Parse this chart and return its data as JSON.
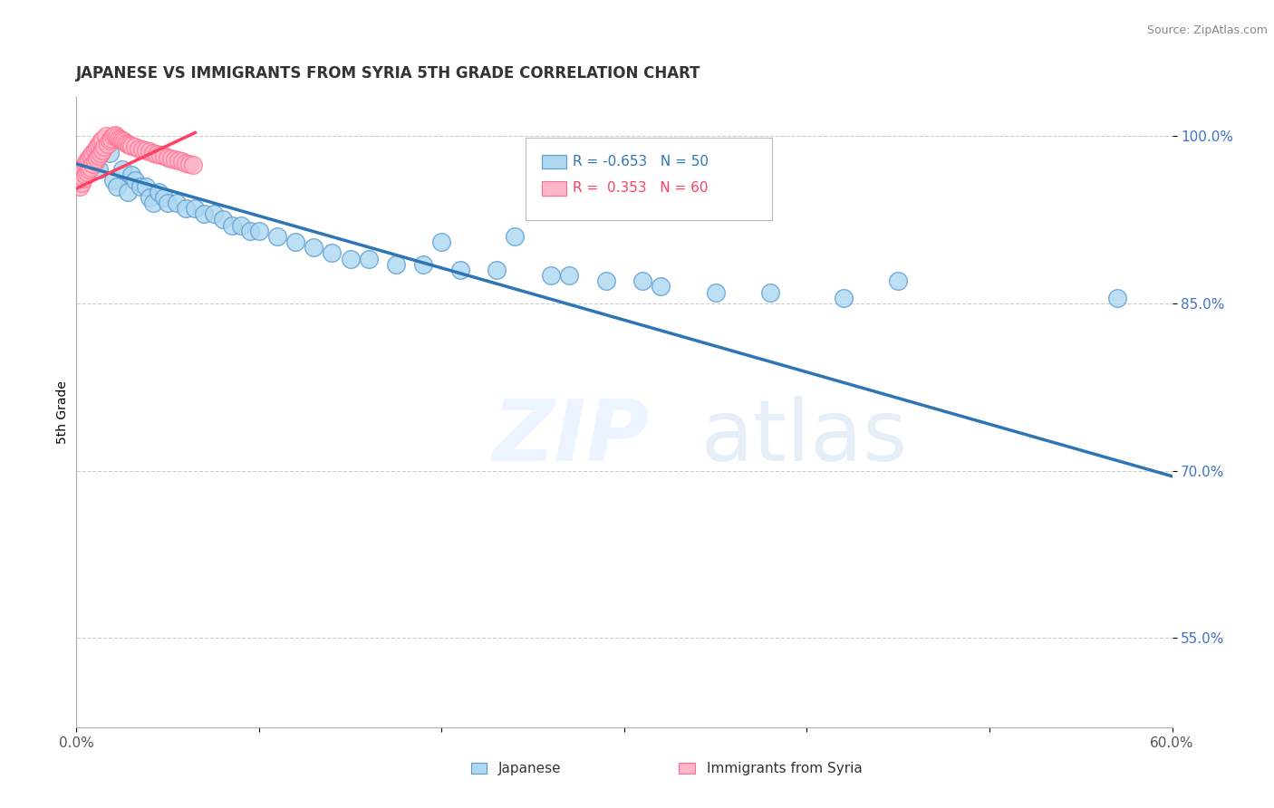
{
  "title": "JAPANESE VS IMMIGRANTS FROM SYRIA 5TH GRADE CORRELATION CHART",
  "source": "Source: ZipAtlas.com",
  "ylabel": "5th Grade",
  "ytick_labels": [
    "100.0%",
    "85.0%",
    "70.0%",
    "55.0%"
  ],
  "ytick_values": [
    1.0,
    0.85,
    0.7,
    0.55
  ],
  "xlim": [
    0.0,
    0.6
  ],
  "ylim": [
    0.47,
    1.035
  ],
  "blue_color": "#ADD8F0",
  "blue_edge_color": "#5B9BD5",
  "pink_color": "#FFB6C8",
  "pink_edge_color": "#FF7090",
  "blue_line_color": "#2E75B6",
  "pink_line_color": "#FF4060",
  "legend_R_blue": "-0.653",
  "legend_N_blue": "50",
  "legend_R_pink": "0.353",
  "legend_N_pink": "60",
  "legend_label_blue": "Japanese",
  "legend_label_pink": "Immigrants from Syria",
  "blue_scatter_x": [
    0.008,
    0.01,
    0.012,
    0.015,
    0.018,
    0.02,
    0.022,
    0.025,
    0.028,
    0.03,
    0.032,
    0.035,
    0.038,
    0.04,
    0.042,
    0.045,
    0.048,
    0.05,
    0.055,
    0.06,
    0.065,
    0.07,
    0.075,
    0.08,
    0.085,
    0.09,
    0.095,
    0.1,
    0.11,
    0.12,
    0.13,
    0.14,
    0.15,
    0.16,
    0.175,
    0.19,
    0.21,
    0.23,
    0.26,
    0.29,
    0.32,
    0.35,
    0.38,
    0.2,
    0.24,
    0.42,
    0.45,
    0.57,
    0.31,
    0.27
  ],
  "blue_scatter_y": [
    0.98,
    0.975,
    0.97,
    0.99,
    0.985,
    0.96,
    0.955,
    0.97,
    0.95,
    0.965,
    0.96,
    0.955,
    0.955,
    0.945,
    0.94,
    0.95,
    0.945,
    0.94,
    0.94,
    0.935,
    0.935,
    0.93,
    0.93,
    0.925,
    0.92,
    0.92,
    0.915,
    0.915,
    0.91,
    0.905,
    0.9,
    0.895,
    0.89,
    0.89,
    0.885,
    0.885,
    0.88,
    0.88,
    0.875,
    0.87,
    0.865,
    0.86,
    0.86,
    0.905,
    0.91,
    0.855,
    0.87,
    0.855,
    0.87,
    0.875
  ],
  "pink_scatter_x": [
    0.001,
    0.002,
    0.002,
    0.003,
    0.003,
    0.004,
    0.004,
    0.005,
    0.005,
    0.006,
    0.006,
    0.007,
    0.007,
    0.008,
    0.008,
    0.009,
    0.009,
    0.01,
    0.01,
    0.011,
    0.011,
    0.012,
    0.012,
    0.013,
    0.013,
    0.014,
    0.014,
    0.015,
    0.016,
    0.017,
    0.018,
    0.019,
    0.02,
    0.021,
    0.022,
    0.023,
    0.024,
    0.025,
    0.026,
    0.027,
    0.028,
    0.029,
    0.03,
    0.032,
    0.034,
    0.036,
    0.038,
    0.04,
    0.042,
    0.044,
    0.046,
    0.048,
    0.05,
    0.052,
    0.054,
    0.056,
    0.058,
    0.06,
    0.062,
    0.064
  ],
  "pink_scatter_y": [
    0.96,
    0.955,
    0.965,
    0.958,
    0.968,
    0.962,
    0.972,
    0.965,
    0.975,
    0.968,
    0.978,
    0.97,
    0.98,
    0.972,
    0.982,
    0.975,
    0.985,
    0.977,
    0.987,
    0.98,
    0.99,
    0.982,
    0.992,
    0.985,
    0.995,
    0.987,
    0.997,
    0.99,
    1.0,
    0.993,
    0.996,
    0.998,
    1.0,
    1.001,
    0.999,
    0.998,
    0.997,
    0.996,
    0.995,
    0.994,
    0.993,
    0.992,
    0.991,
    0.99,
    0.989,
    0.988,
    0.987,
    0.986,
    0.985,
    0.984,
    0.983,
    0.982,
    0.981,
    0.98,
    0.979,
    0.978,
    0.977,
    0.976,
    0.975,
    0.974
  ],
  "blue_trend_x": [
    0.0,
    0.6
  ],
  "blue_trend_y": [
    0.975,
    0.695
  ],
  "pink_trend_x": [
    0.0,
    0.065
  ],
  "pink_trend_y": [
    0.953,
    1.003
  ]
}
